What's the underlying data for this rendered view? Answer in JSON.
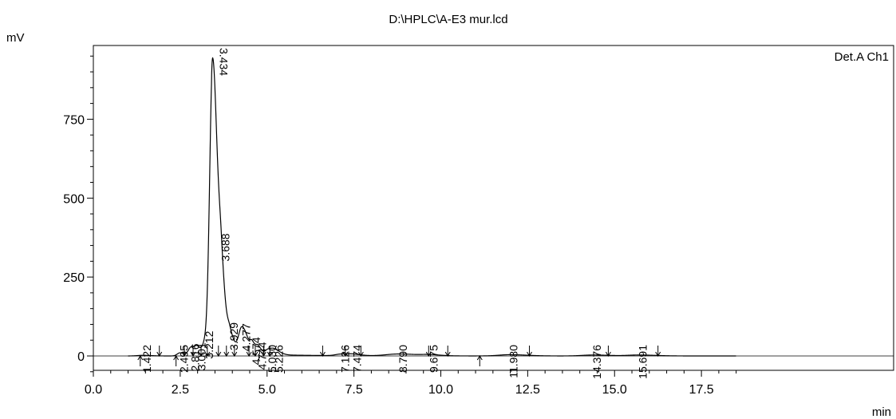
{
  "chart_data": {
    "type": "line",
    "title": "D:\\HPLC\\A-E3 mur.lcd",
    "ylabel": "mV",
    "xlabel": "min",
    "channel_label": "Det.A Ch1",
    "xlim": [
      0,
      18.5
    ],
    "ylim": [
      -50,
      980
    ],
    "x_ticks": [
      0.0,
      2.5,
      5.0,
      7.5,
      10.0,
      12.5,
      15.0,
      17.5
    ],
    "x_tick_labels": [
      "0.0",
      "2.5",
      "5.0",
      "7.5",
      "10.0",
      "12.5",
      "15.0",
      "17.5"
    ],
    "y_ticks": [
      0,
      250,
      500,
      750
    ],
    "y_tick_labels": [
      "0",
      "250",
      "500",
      "750"
    ],
    "grid": false,
    "baseline": 0,
    "peaks": [
      {
        "rt": 1.422,
        "label": "1.422",
        "height": 2,
        "width": 0.15
      },
      {
        "rt": 2.495,
        "label": "2.495",
        "height": 10,
        "width": 0.08
      },
      {
        "rt": 2.816,
        "label": "2.816",
        "height": 28,
        "width": 0.08
      },
      {
        "rt": 3.001,
        "label": "3.001",
        "height": 22,
        "width": 0.07
      },
      {
        "rt": 3.212,
        "label": "3.212",
        "height": 35,
        "width": 0.07
      },
      {
        "rt": 3.434,
        "label": "3.434",
        "height": 925,
        "width": 0.085
      },
      {
        "rt": 3.688,
        "label": "3.688",
        "height": 205,
        "width": 0.075
      },
      {
        "rt": 3.929,
        "label": "3.929",
        "height": 58,
        "width": 0.07
      },
      {
        "rt": 4.277,
        "label": "4.277",
        "height": 85,
        "width": 0.1
      },
      {
        "rt": 4.574,
        "label": "4.574",
        "height": 28,
        "width": 0.06
      },
      {
        "rt": 4.744,
        "label": "4.744",
        "height": 22,
        "width": 0.06
      },
      {
        "rt": 5.03,
        "label": "5.030",
        "height": 16,
        "width": 0.08
      },
      {
        "rt": 5.226,
        "label": "5.226",
        "height": 14,
        "width": 0.1
      },
      {
        "rt": 7.126,
        "label": "7.126",
        "height": 5,
        "width": 0.15
      },
      {
        "rt": 7.474,
        "label": "7.474",
        "height": 4,
        "width": 0.15
      },
      {
        "rt": 8.79,
        "label": "8.790",
        "height": 6,
        "width": 0.35
      },
      {
        "rt": 9.675,
        "label": "9.675",
        "height": 3,
        "width": 0.2
      },
      {
        "rt": 11.98,
        "label": "11.980",
        "height": 4,
        "width": 0.3
      },
      {
        "rt": 14.376,
        "label": "14.376",
        "height": 3,
        "width": 0.3
      },
      {
        "rt": 15.691,
        "label": "15.691",
        "height": 3,
        "width": 0.3
      }
    ],
    "markers": [
      {
        "x": 1.35,
        "dir": "up"
      },
      {
        "x": 1.9,
        "dir": "down"
      },
      {
        "x": 2.38,
        "dir": "up"
      },
      {
        "x": 2.62,
        "dir": "down"
      },
      {
        "x": 2.87,
        "dir": "down"
      },
      {
        "x": 3.1,
        "dir": "down"
      },
      {
        "x": 3.28,
        "dir": "down"
      },
      {
        "x": 3.6,
        "dir": "down"
      },
      {
        "x": 3.83,
        "dir": "down"
      },
      {
        "x": 4.06,
        "dir": "down"
      },
      {
        "x": 4.48,
        "dir": "down"
      },
      {
        "x": 4.66,
        "dir": "down"
      },
      {
        "x": 4.9,
        "dir": "down"
      },
      {
        "x": 5.08,
        "dir": "down"
      },
      {
        "x": 6.6,
        "dir": "down"
      },
      {
        "x": 7.25,
        "dir": "down"
      },
      {
        "x": 7.7,
        "dir": "down"
      },
      {
        "x": 9.65,
        "dir": "down"
      },
      {
        "x": 10.2,
        "dir": "down"
      },
      {
        "x": 11.12,
        "dir": "up"
      },
      {
        "x": 12.55,
        "dir": "down"
      },
      {
        "x": 14.82,
        "dir": "down"
      },
      {
        "x": 16.25,
        "dir": "down"
      }
    ]
  }
}
